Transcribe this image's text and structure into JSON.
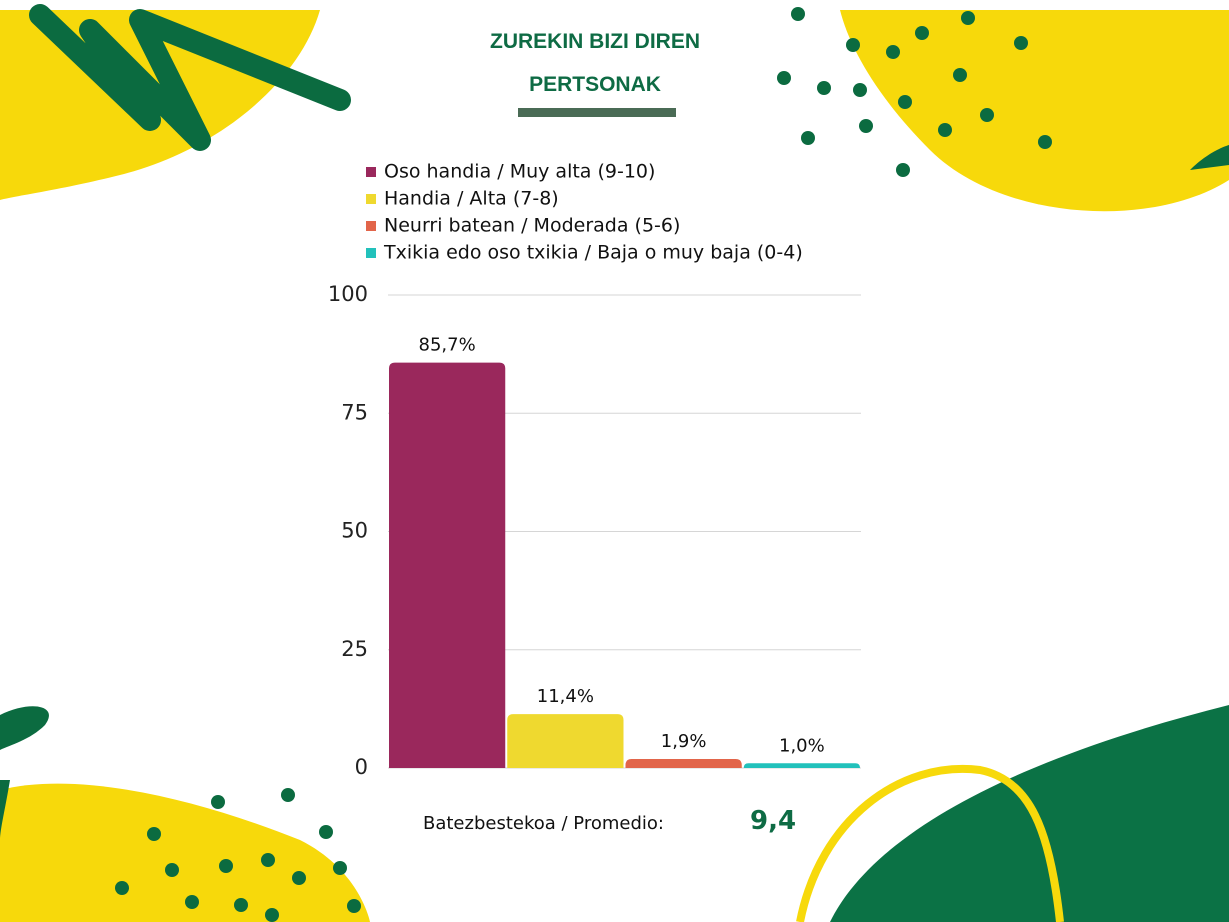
{
  "chart_data": {
    "type": "bar",
    "title": "ZUREKIN BIZI DIREN PERTSONAK",
    "series": [
      {
        "name": "Oso handia / Muy alta (9-10)",
        "color": "#9a285c",
        "values": [
          85.7
        ],
        "value_labels": [
          "85,7%"
        ]
      },
      {
        "name": "Handia / Alta (7-8)",
        "color": "#efd92f",
        "values": [
          11.4
        ],
        "value_labels": [
          "11,4%"
        ]
      },
      {
        "name": "Neurri batean / Moderada (5-6)",
        "color": "#e2654a",
        "values": [
          1.9
        ],
        "value_labels": [
          "1,9%"
        ]
      },
      {
        "name": "Txikia edo oso txikia / Baja o muy baja (0-4)",
        "color": "#22c1bb",
        "values": [
          1.0
        ],
        "value_labels": [
          "1,0%"
        ]
      }
    ],
    "ylim": [
      0,
      100
    ],
    "yticks": [
      0,
      25,
      50,
      75,
      100
    ],
    "grid": true,
    "average": {
      "label": "Batezbestekoa / Promedio:",
      "value": "9,4"
    }
  }
}
